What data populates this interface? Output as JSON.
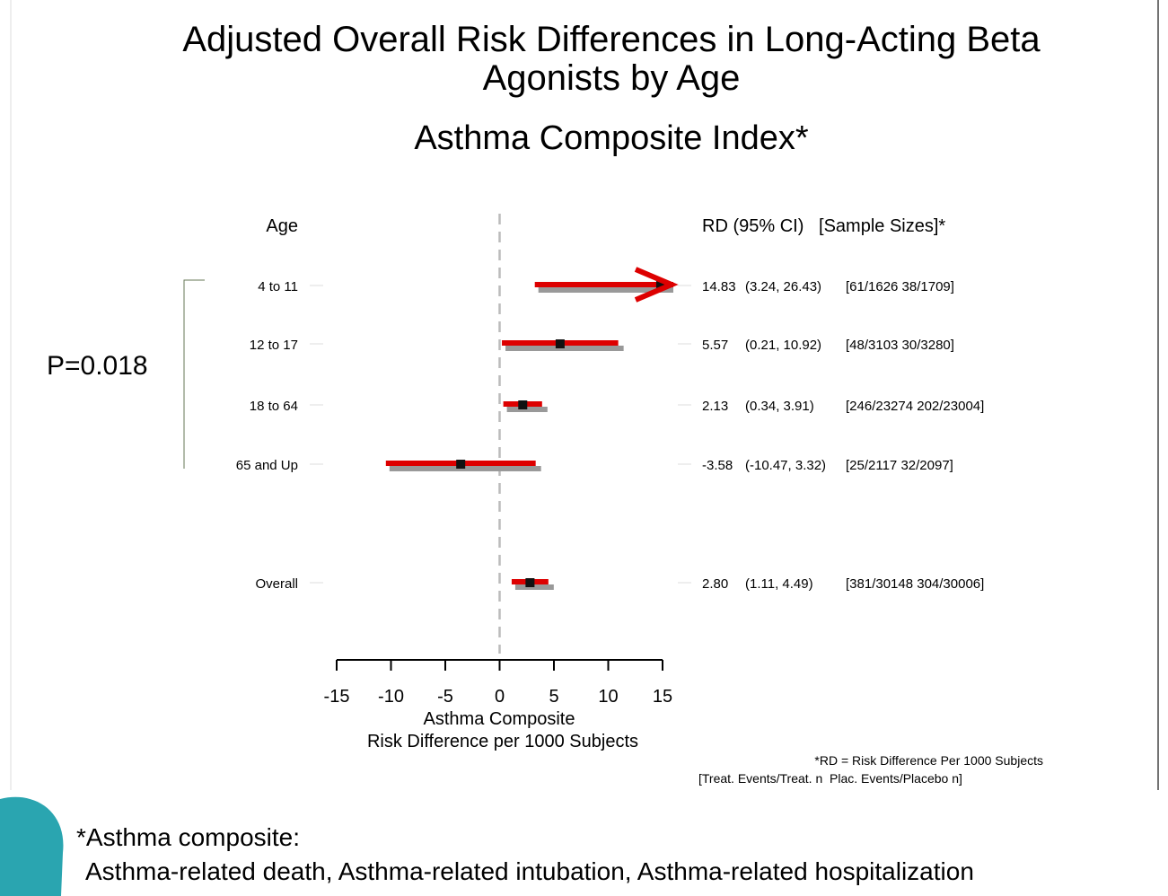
{
  "chart_data": {
    "type": "forest",
    "title_lines": [
      "Adjusted Overall Risk Differences in Long-Acting Beta",
      "Agonists by Age"
    ],
    "subtitle": "Asthma Composite Index*",
    "category_header": "Age",
    "stats_header": "RD (95% CI)   [Sample Sizes]*",
    "p_value": "P=0.018",
    "categories": [
      "4 to 11",
      "12 to 17",
      "18 to 64",
      "65 and Up",
      "Overall"
    ],
    "values": [
      14.83,
      5.57,
      2.13,
      -3.58,
      2.8
    ],
    "value_labels": [
      "14.83",
      "5.57",
      "2.13",
      "-3.58",
      "2.80"
    ],
    "lower": [
      3.24,
      0.21,
      0.34,
      -10.47,
      1.11
    ],
    "upper": [
      26.43,
      10.92,
      3.91,
      3.32,
      4.49
    ],
    "ci_labels": [
      "(3.24, 26.43)",
      "(0.21, 10.92)",
      "(0.34, 3.91)",
      "(-10.47, 3.32)",
      "(1.11, 4.49)"
    ],
    "sample_sizes": [
      "[61/1626 38/1709]",
      "[48/3103 30/3280]",
      "[246/23274 202/23004]",
      "[25/2117 32/2097]",
      "[381/30148 304/30006]"
    ],
    "xlim": [
      -15,
      15
    ],
    "xticks": [
      -15,
      -10,
      -5,
      0,
      5,
      10,
      15
    ],
    "x_label_lines": [
      "Asthma Composite",
      "Risk Difference per 1000 Subjects"
    ],
    "footnote_lines": [
      "*RD = Risk Difference Per 1000 Subjects",
      "[Treat. Events/Treat. n  Plac. Events/Placebo n]"
    ],
    "note_lines": [
      "*Asthma composite:",
      "Asthma-related death, Asthma-related intubation, Asthma-related hospitalization"
    ],
    "ci_color": "#999999",
    "highlight_color": "#dd0000"
  }
}
